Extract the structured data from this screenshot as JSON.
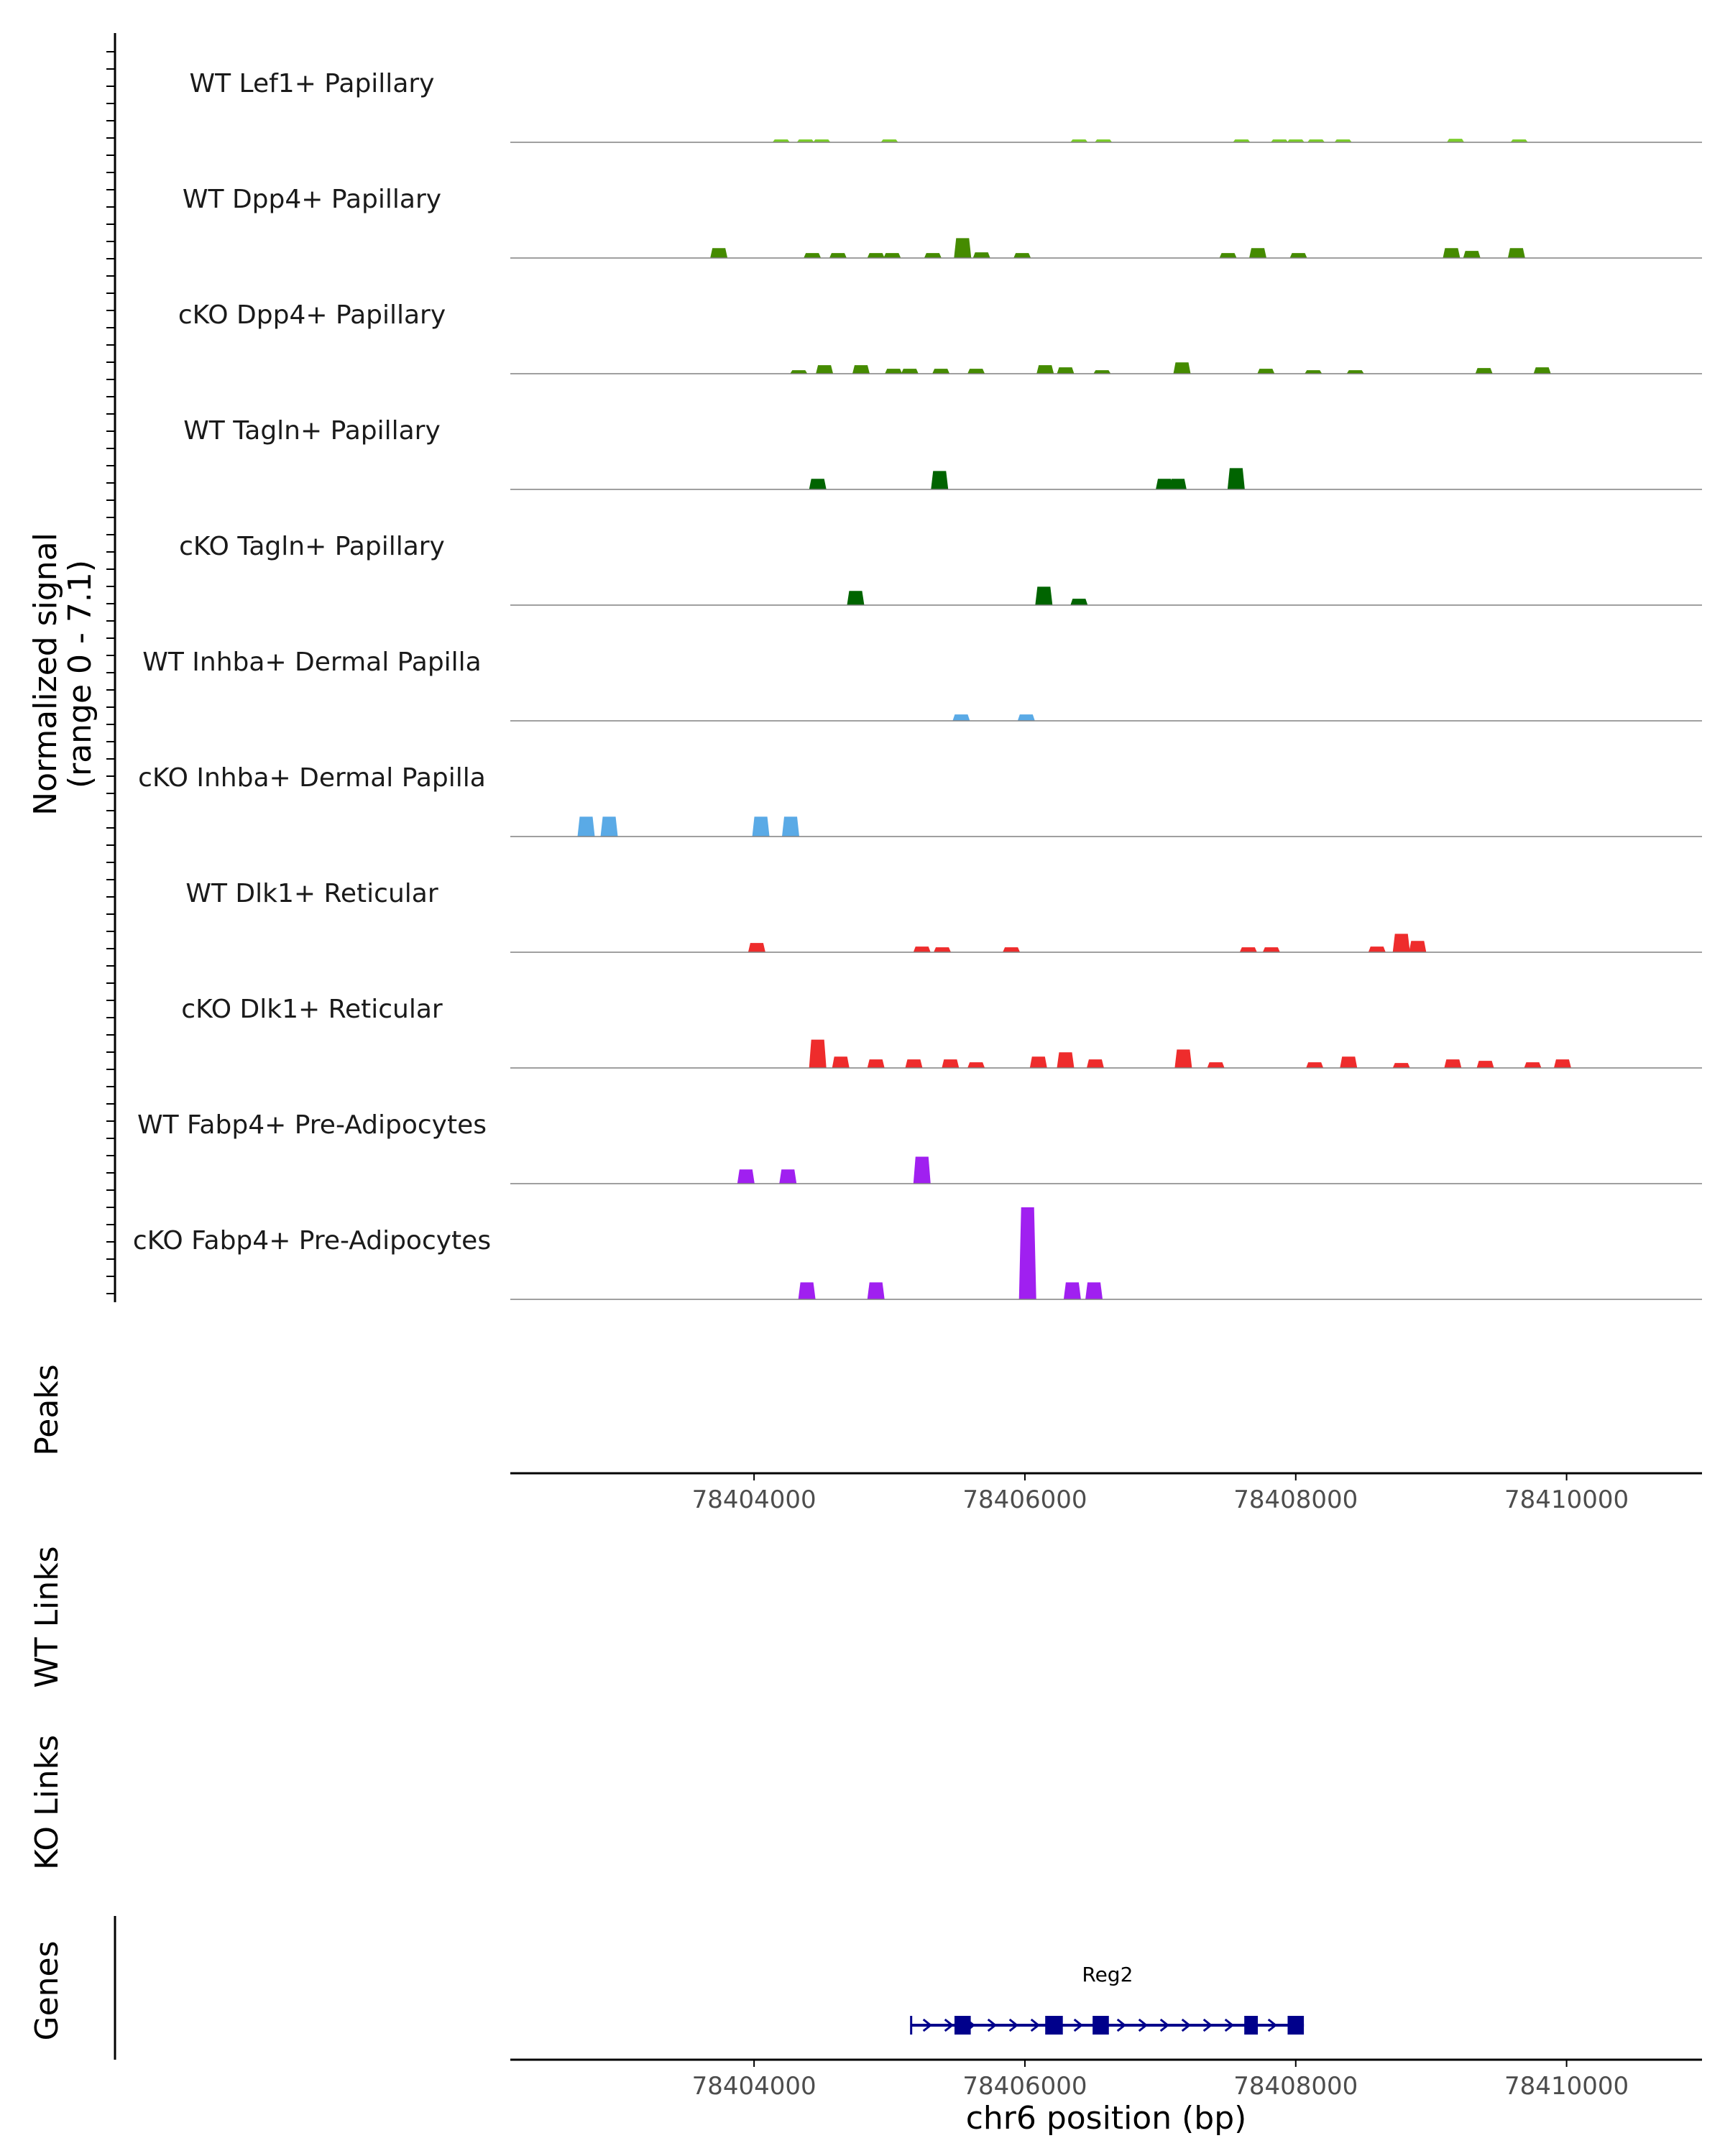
{
  "chart_data": {
    "type": "coverage",
    "chromosome": "chr6",
    "xlabel": "chr6 position (bp)",
    "xlim": [
      78402200,
      78411000
    ],
    "x_ticks": [
      78404000,
      78406000,
      78408000,
      78410000
    ],
    "x_tick_labels": [
      "78404000",
      "78406000",
      "78408000",
      "78410000"
    ],
    "ylabel_line1": "Normalized signal",
    "ylabel_line2": "(range 0 - 7.1)",
    "ylim": [
      0,
      7.1
    ],
    "tracks": [
      {
        "name": "WT Lef1+ Papillary",
        "color": "#7ccd2c",
        "peaks": [
          [
            78404200,
            0.15
          ],
          [
            78404380,
            0.15
          ],
          [
            78404500,
            0.15
          ],
          [
            78405000,
            0.12
          ],
          [
            78406400,
            0.12
          ],
          [
            78406580,
            0.12
          ],
          [
            78407600,
            0.18
          ],
          [
            78407880,
            0.15
          ],
          [
            78408000,
            0.15
          ],
          [
            78408150,
            0.12
          ],
          [
            78408350,
            0.12
          ],
          [
            78409180,
            0.25
          ],
          [
            78409650,
            0.18
          ]
        ]
      },
      {
        "name": "WT Dpp4+ Papillary",
        "color": "#458b00",
        "peaks": [
          [
            78403740,
            0.7
          ],
          [
            78404430,
            0.35
          ],
          [
            78404620,
            0.35
          ],
          [
            78404900,
            0.35
          ],
          [
            78405020,
            0.35
          ],
          [
            78405320,
            0.35
          ],
          [
            78405540,
            1.4
          ],
          [
            78405680,
            0.4
          ],
          [
            78405980,
            0.35
          ],
          [
            78407500,
            0.35
          ],
          [
            78407720,
            0.7
          ],
          [
            78408020,
            0.35
          ],
          [
            78409150,
            0.7
          ],
          [
            78409300,
            0.5
          ],
          [
            78409630,
            0.7
          ]
        ]
      },
      {
        "name": "cKO Dpp4+ Papillary",
        "color": "#458b00",
        "peaks": [
          [
            78404330,
            0.25
          ],
          [
            78404520,
            0.6
          ],
          [
            78404790,
            0.6
          ],
          [
            78405030,
            0.35
          ],
          [
            78405150,
            0.35
          ],
          [
            78405380,
            0.35
          ],
          [
            78405640,
            0.35
          ],
          [
            78406150,
            0.6
          ],
          [
            78406300,
            0.45
          ],
          [
            78406570,
            0.25
          ],
          [
            78407160,
            0.8
          ],
          [
            78407780,
            0.35
          ],
          [
            78408130,
            0.25
          ],
          [
            78408440,
            0.25
          ],
          [
            78409390,
            0.4
          ],
          [
            78409820,
            0.45
          ]
        ]
      },
      {
        "name": "WT Tagln+ Papillary",
        "color": "#006400",
        "peaks": [
          [
            78404470,
            0.75
          ],
          [
            78405370,
            1.3
          ],
          [
            78407030,
            0.75
          ],
          [
            78407130,
            0.75
          ],
          [
            78407560,
            1.5
          ]
        ]
      },
      {
        "name": "cKO Tagln+ Papillary",
        "color": "#006400",
        "peaks": [
          [
            78404750,
            1.0
          ],
          [
            78406140,
            1.3
          ],
          [
            78406400,
            0.45
          ]
        ]
      },
      {
        "name": "WT Inhba+ Dermal Papilla",
        "color": "#5aaae6",
        "peaks": [
          [
            78405530,
            0.45
          ],
          [
            78406010,
            0.45
          ]
        ]
      },
      {
        "name": "cKO Inhba+ Dermal Papilla",
        "color": "#5aaae6",
        "peaks": [
          [
            78402760,
            1.4
          ],
          [
            78402930,
            1.4
          ],
          [
            78404050,
            1.4
          ],
          [
            78404270,
            1.4
          ]
        ]
      },
      {
        "name": "WT Dlk1+ Reticular",
        "color": "#ee2c2c",
        "peaks": [
          [
            78404020,
            0.65
          ],
          [
            78405240,
            0.4
          ],
          [
            78405390,
            0.35
          ],
          [
            78405900,
            0.35
          ],
          [
            78407650,
            0.35
          ],
          [
            78407820,
            0.35
          ],
          [
            78408600,
            0.4
          ],
          [
            78408780,
            1.3
          ],
          [
            78408900,
            0.8
          ]
        ]
      },
      {
        "name": "cKO Dlk1+ Reticular",
        "color": "#ee2c2c",
        "peaks": [
          [
            78404470,
            2.0
          ],
          [
            78404640,
            0.8
          ],
          [
            78404900,
            0.6
          ],
          [
            78405180,
            0.6
          ],
          [
            78405450,
            0.6
          ],
          [
            78405640,
            0.4
          ],
          [
            78406100,
            0.8
          ],
          [
            78406300,
            1.1
          ],
          [
            78406520,
            0.6
          ],
          [
            78407170,
            1.3
          ],
          [
            78407410,
            0.4
          ],
          [
            78408140,
            0.4
          ],
          [
            78408390,
            0.8
          ],
          [
            78408780,
            0.35
          ],
          [
            78409160,
            0.6
          ],
          [
            78409400,
            0.5
          ],
          [
            78409750,
            0.4
          ],
          [
            78409970,
            0.6
          ]
        ]
      },
      {
        "name": "WT Fabp4+ Pre-Adipocytes",
        "color": "#a020f0",
        "peaks": [
          [
            78403940,
            1.0
          ],
          [
            78404250,
            1.0
          ],
          [
            78405240,
            1.9
          ]
        ]
      },
      {
        "name": "cKO Fabp4+ Pre-Adipocytes",
        "color": "#a020f0",
        "peaks": [
          [
            78404390,
            1.2
          ],
          [
            78404900,
            1.2
          ],
          [
            78406020,
            6.5
          ],
          [
            78406350,
            1.2
          ],
          [
            78406510,
            1.2
          ]
        ]
      }
    ],
    "panels": {
      "peaks": "Peaks",
      "wt_links": "WT Links",
      "ko_links": "KO Links",
      "genes": "Genes"
    },
    "gene": {
      "name": "Reg2",
      "start": 78405160,
      "end": 78408060,
      "strand": "+",
      "color": "#00008b",
      "exons": [
        [
          78405480,
          78405600
        ],
        [
          78406150,
          78406280
        ],
        [
          78406500,
          78406620
        ],
        [
          78407620,
          78407720
        ],
        [
          78407940,
          78408060
        ]
      ]
    }
  }
}
